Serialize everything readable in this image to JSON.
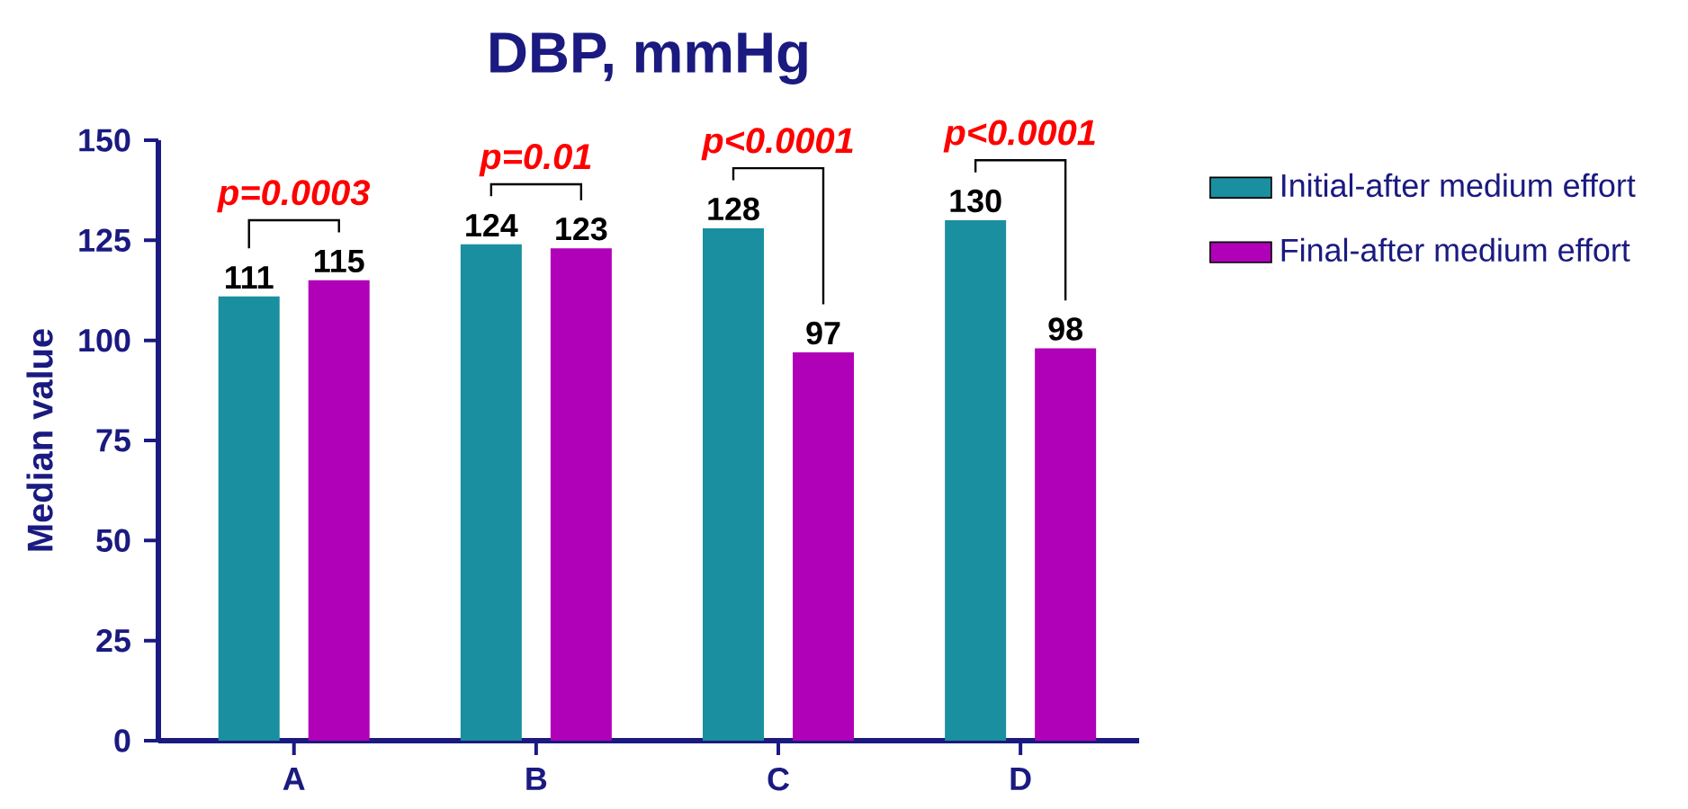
{
  "chart_data": {
    "type": "bar",
    "title": "DBP, mmHg",
    "ylabel": "Median value",
    "categories": [
      "A",
      "B",
      "C",
      "D"
    ],
    "series": [
      {
        "name": "Initial-after medium effort",
        "color": "#1a8fa0",
        "values": [
          111,
          124,
          128,
          130
        ]
      },
      {
        "name": "Final-after medium effort",
        "color": "#b000b8",
        "values": [
          115,
          123,
          97,
          98
        ]
      }
    ],
    "ylim": [
      0,
      150
    ],
    "yticks": [
      0,
      25,
      50,
      75,
      100,
      125,
      150
    ],
    "data_labels": true,
    "legend": "right",
    "grid": false,
    "annotations": [
      "p=0.0003",
      "p=0.01",
      "p<0.0001",
      "p<0.0001"
    ]
  }
}
